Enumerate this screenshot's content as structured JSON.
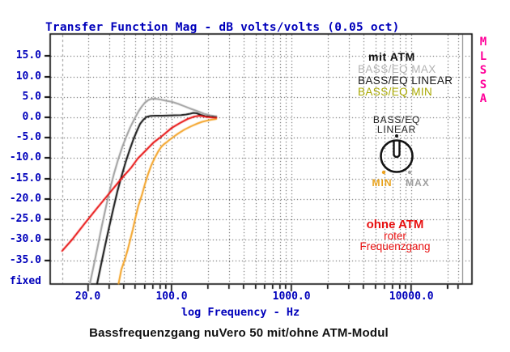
{
  "header": {
    "title": "Transfer Function Mag - dB volts/volts (0.05 oct)"
  },
  "caption": "Bassfrequenzgang nuVero 50 mit/ohne ATM-Modul",
  "colors": {
    "axis_text": "#0000bb",
    "grid": "#3a3a3a",
    "border": "#000000",
    "watermark": "#ff0099",
    "annotation_red": "#e81010"
  },
  "y_axis": {
    "mode_label": "fixed",
    "ticks": [
      {
        "v": 15,
        "label": "15.0"
      },
      {
        "v": 10,
        "label": "10.0"
      },
      {
        "v": 5,
        "label": "5.0"
      },
      {
        "v": 0,
        "label": "0.0"
      },
      {
        "v": -5,
        "label": "-5.0"
      },
      {
        "v": -10,
        "label": "-10.0"
      },
      {
        "v": -15,
        "label": "-15.0"
      },
      {
        "v": -20,
        "label": "-20.0"
      },
      {
        "v": -25,
        "label": "-25.0"
      },
      {
        "v": -30,
        "label": "-30.0"
      },
      {
        "v": -35,
        "label": "-35.0"
      }
    ]
  },
  "x_axis": {
    "label": "log Frequency - Hz",
    "ticks": [
      {
        "v": 20,
        "label": "20.0"
      },
      {
        "v": 100,
        "label": "100.0"
      },
      {
        "v": 1000,
        "label": "1000.0"
      },
      {
        "v": 10000,
        "label": "10000.0"
      }
    ]
  },
  "legend": {
    "items": [
      {
        "label": "mit ATM",
        "color": "#111111"
      },
      {
        "label": "BASS/EQ MAX",
        "color": "#b2b2b2"
      },
      {
        "label": "BASS/EQ LINEAR",
        "color": "#1a1a1a"
      },
      {
        "label": "BASS/EQ MIN",
        "color": "#a8a800"
      }
    ]
  },
  "knob": {
    "line1": "BASS/EQ",
    "line2": "LINEAR",
    "min_label": "MIN",
    "max_label": "MAX",
    "min_color": "#e8a21c",
    "max_color": "#9e9e9e",
    "dot_min_color": "#eea31f",
    "dot_max_color": "#a6a6a6"
  },
  "annotation": {
    "line1": "ohne ATM",
    "line2": "roter",
    "line3": "Frequenzgang",
    "color": "#e81010"
  },
  "watermark": {
    "text": "MLSSA",
    "color": "#ff0099"
  },
  "chart_data": {
    "type": "line",
    "title": "Transfer Function Mag - dB volts/volts (0.05 oct)",
    "xlabel": "log Frequency - Hz",
    "ylabel": "dB volts/volts",
    "x_scale": "log",
    "xlim": [
      9.7,
      32000
    ],
    "ylim": [
      -40.8,
      20.4
    ],
    "grid": {
      "on": true,
      "y_step": 5,
      "y_labeled_range": [
        -35,
        15
      ],
      "x_minors_per_decade": true
    },
    "cursors": {
      "dashed_hz": 12.2,
      "dotted_hz": 24500,
      "solid_hz": 26500
    },
    "series": [
      {
        "name": "BASS/EQ MAX",
        "color": "#9e9e9e",
        "points": [
          [
            20.8,
            -40.8
          ],
          [
            22.5,
            -36.0
          ],
          [
            24.3,
            -31.3
          ],
          [
            26.2,
            -26.5
          ],
          [
            28.3,
            -22.0
          ],
          [
            30.6,
            -17.6
          ],
          [
            33.1,
            -13.7
          ],
          [
            35.8,
            -10.3
          ],
          [
            38.7,
            -7.3
          ],
          [
            41.8,
            -4.8
          ],
          [
            45.2,
            -2.4
          ],
          [
            48.9,
            -0.4
          ],
          [
            52.8,
            1.4
          ],
          [
            56.2,
            2.6
          ],
          [
            59.8,
            3.6
          ],
          [
            63.6,
            4.2
          ],
          [
            67.7,
            4.5
          ],
          [
            73.2,
            4.55
          ],
          [
            80.3,
            4.35
          ],
          [
            89.6,
            4.05
          ],
          [
            100,
            3.8
          ],
          [
            113,
            3.3
          ],
          [
            128,
            2.7
          ],
          [
            145,
            2.1
          ],
          [
            165,
            1.5
          ],
          [
            186,
            0.9
          ],
          [
            209,
            0.5
          ],
          [
            226,
            0.35
          ],
          [
            236,
            0.3
          ]
        ]
      },
      {
        "name": "mit ATM (BASS/EQ LINEAR)",
        "color": "#111111",
        "points": [
          [
            23.9,
            -40.8
          ],
          [
            25.8,
            -36.0
          ],
          [
            27.9,
            -31.3
          ],
          [
            30.2,
            -26.7
          ],
          [
            32.6,
            -22.4
          ],
          [
            35.2,
            -18.2
          ],
          [
            38.1,
            -14.5
          ],
          [
            41.2,
            -11.1
          ],
          [
            44.5,
            -8.1
          ],
          [
            48.1,
            -5.3
          ],
          [
            51.2,
            -3.4
          ],
          [
            54.5,
            -1.6
          ],
          [
            58,
            -0.6
          ],
          [
            61.7,
            0.1
          ],
          [
            66.7,
            0.35
          ],
          [
            73.2,
            0.4
          ],
          [
            82.9,
            0.4
          ],
          [
            93.9,
            0.45
          ],
          [
            106,
            0.5
          ],
          [
            120,
            0.55
          ],
          [
            132,
            0.7
          ],
          [
            143,
            0.9
          ],
          [
            152,
            1.1
          ],
          [
            162,
            1.0
          ],
          [
            175,
            0.6
          ],
          [
            190,
            0.3
          ],
          [
            209,
            0.15
          ],
          [
            226,
            0.05
          ],
          [
            236,
            0.0
          ]
        ]
      },
      {
        "name": "BASS/EQ MIN",
        "color": "#f3a225",
        "points": [
          [
            36.1,
            -40.8
          ],
          [
            38.1,
            -37.2
          ],
          [
            40.6,
            -34.9
          ],
          [
            43.1,
            -32.3
          ],
          [
            45.2,
            -29.9
          ],
          [
            47.4,
            -27.5
          ],
          [
            49.7,
            -24.8
          ],
          [
            52.8,
            -21.6
          ],
          [
            56.2,
            -19.2
          ],
          [
            59.8,
            -16.4
          ],
          [
            63.6,
            -13.9
          ],
          [
            67.7,
            -11.7
          ],
          [
            72.1,
            -10.0
          ],
          [
            76.7,
            -8.5
          ],
          [
            81.6,
            -7.3
          ],
          [
            86.9,
            -6.5
          ],
          [
            92.5,
            -5.9
          ],
          [
            100,
            -5.1
          ],
          [
            113,
            -4.0
          ],
          [
            128,
            -3.0
          ],
          [
            145,
            -2.2
          ],
          [
            165,
            -1.5
          ],
          [
            180,
            -1.1
          ],
          [
            198,
            -0.8
          ],
          [
            213,
            -0.6
          ],
          [
            225,
            -0.5
          ],
          [
            236,
            -0.4
          ]
        ]
      },
      {
        "name": "ohne ATM",
        "color": "#e81010",
        "points": [
          [
            12.2,
            -32.7
          ],
          [
            15,
            -29.7
          ],
          [
            18.9,
            -25.9
          ],
          [
            23.9,
            -22.2
          ],
          [
            30.2,
            -18.6
          ],
          [
            38.1,
            -15.0
          ],
          [
            46,
            -12.3
          ],
          [
            52.1,
            -10.1
          ],
          [
            60.8,
            -8.1
          ],
          [
            71,
            -6.1
          ],
          [
            82.9,
            -4.6
          ],
          [
            100,
            -2.6
          ],
          [
            117,
            -1.4
          ],
          [
            136,
            -0.4
          ],
          [
            155,
            0.2
          ],
          [
            172,
            0.4
          ],
          [
            195,
            0.1
          ],
          [
            218,
            -0.05
          ],
          [
            236,
            -0.1
          ]
        ]
      }
    ]
  }
}
